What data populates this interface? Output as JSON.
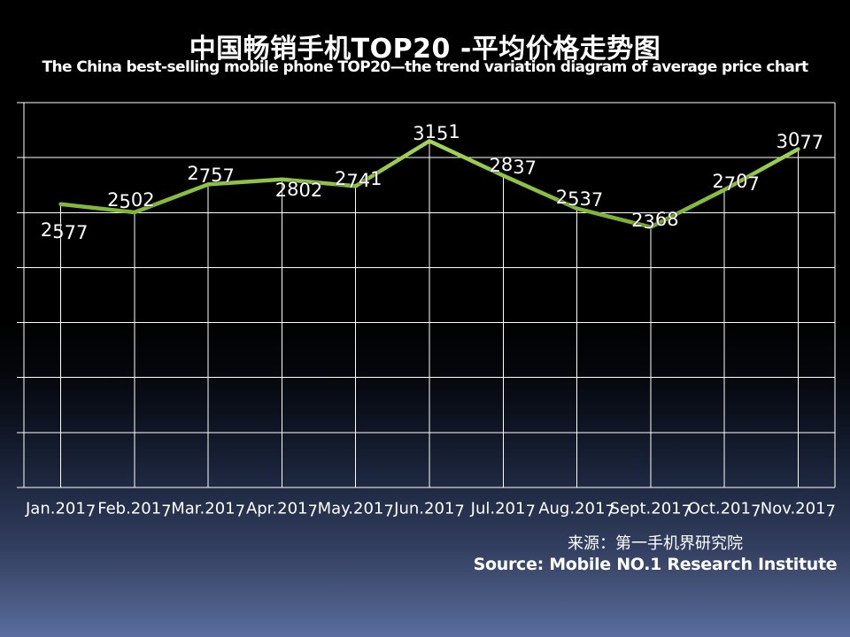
{
  "slide": {
    "title": "中国畅销手机TOP20 -平均价格走势图",
    "subtitle": "The China best-selling mobile phone TOP20—the trend variation diagram of average price chart",
    "source_cn": "来源：第一手机界研究院",
    "source_en": "Source: Mobile NO.1 Research Institute"
  },
  "chart_data": {
    "type": "line",
    "title": "中国畅销手机TOP20 -平均价格走势图 (The China best-selling mobile phone TOP20 — the trend variation diagram of average price chart)",
    "categories": [
      "Jan.2017",
      "Feb.2017",
      "Mar.2017",
      "Apr.2017",
      "May.2017",
      "Jun.2017",
      "Jul.2017",
      "Aug.2017",
      "Sept.2017",
      "Oct.2017",
      "Nov.2017"
    ],
    "values": [
      2577,
      2502,
      2757,
      2802,
      2741,
      3151,
      2837,
      2537,
      2368,
      2707,
      3077
    ],
    "data_labels_visible": true,
    "xlabel": "",
    "ylabel": "",
    "ylim": [
      0,
      3500
    ],
    "y_major_unit": 500,
    "y_tick_labels_visible": false,
    "grid": {
      "horizontal": true,
      "vertical": false,
      "drop_lines_from_points": true
    },
    "legend_position": "none",
    "line_color": "#8dc63f",
    "grid_color": "#ffffff",
    "label_color": "#ffffff",
    "plot_background": "transparent over black-to-blue slide gradient"
  },
  "colors": {
    "background_top": "#000000",
    "background_bottom": "#5a6da1",
    "text": "#ffffff",
    "accent_line": "#8dc63f"
  }
}
